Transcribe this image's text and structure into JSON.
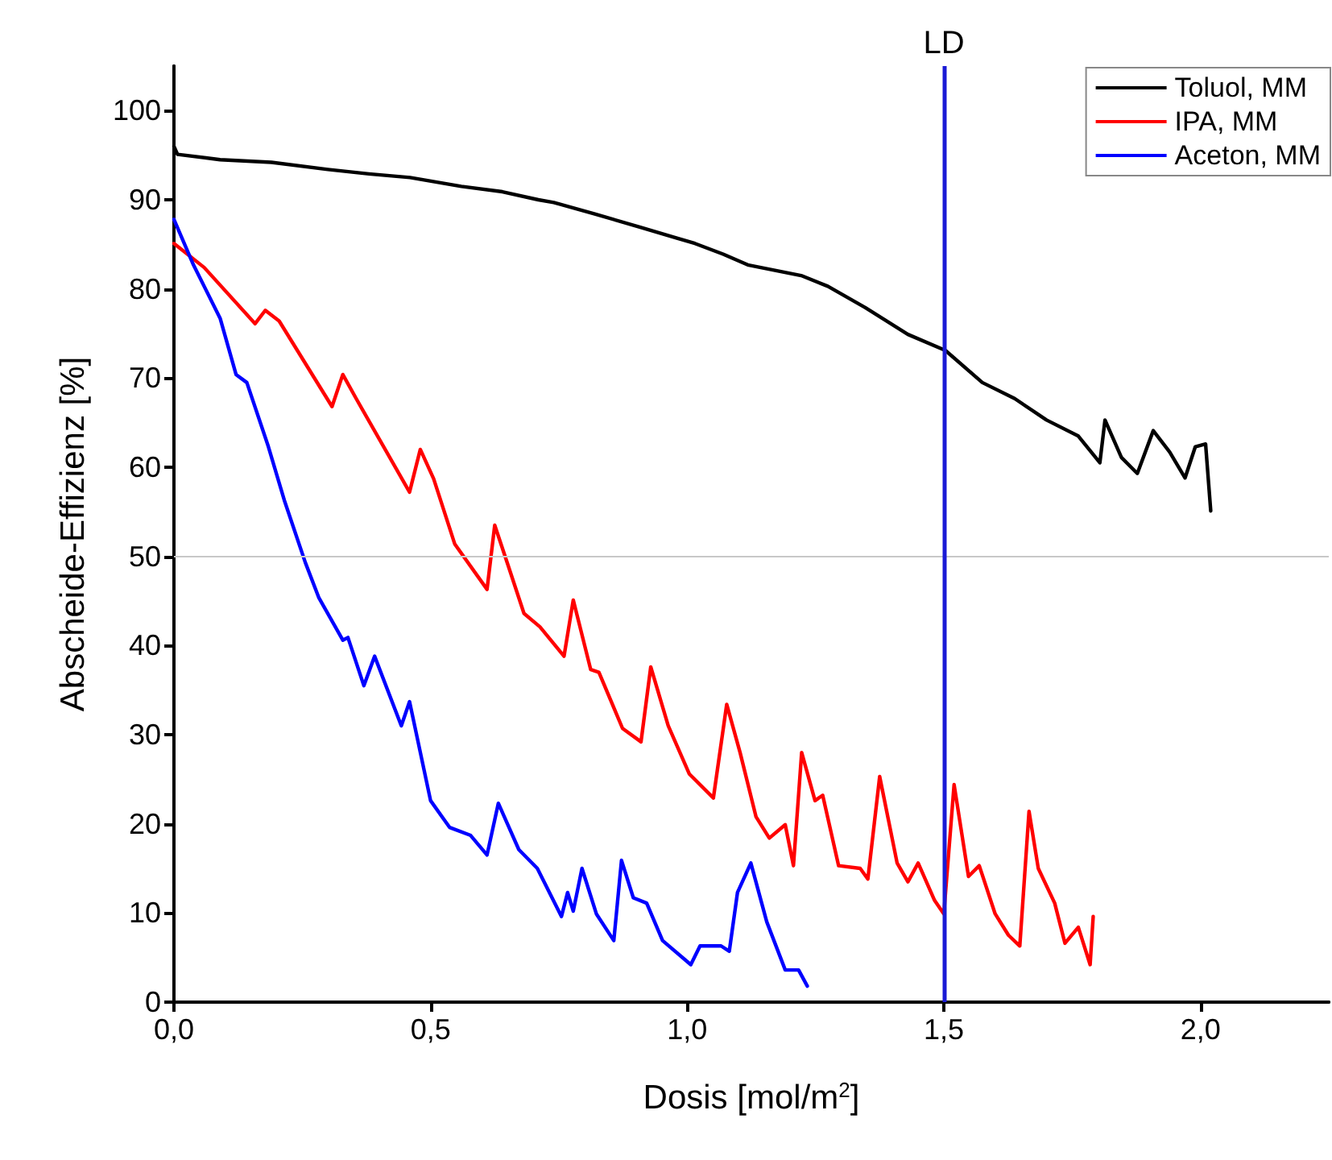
{
  "chart_data": {
    "type": "line",
    "xlabel": "Dosis [mol/m$^{2}$]",
    "ylabel": "Abscheide-Effizienz [%]",
    "xlim": [
      0,
      2.25
    ],
    "ylim": [
      0,
      105
    ],
    "xticks": [
      {
        "value": 0,
        "label": "0,0"
      },
      {
        "value": 0.5,
        "label": "0,5"
      },
      {
        "value": 1,
        "label": "1,0"
      },
      {
        "value": 1.5,
        "label": "1,5"
      },
      {
        "value": 2,
        "label": "2,0"
      }
    ],
    "yticks": [
      0,
      10,
      20,
      30,
      40,
      50,
      60,
      70,
      80,
      90,
      100
    ],
    "grid": false,
    "legend": "top right",
    "marker": "none",
    "line_style": "solid",
    "ref_lines": [
      {
        "axis": "y",
        "value": 50,
        "label": null,
        "color": "#c8c8c8"
      },
      {
        "axis": "x",
        "value": 1.5,
        "label": "LD",
        "color": "#1a1ad6"
      }
    ],
    "series": [
      {
        "name": "Toluol, MM",
        "color": "#000000",
        "x": [
          0,
          0.007,
          0.09,
          0.19,
          0.3,
          0.38,
          0.46,
          0.56,
          0.64,
          0.71,
          0.74,
          0.82,
          0.91,
          0.98,
          1.015,
          1.07,
          1.118,
          1.222,
          1.274,
          1.347,
          1.43,
          1.503,
          1.575,
          1.638,
          1.7,
          1.762,
          1.804,
          1.814,
          1.846,
          1.877,
          1.908,
          1.94,
          1.97,
          1.99,
          2.01,
          2.02
        ],
        "values": [
          96,
          95.1,
          94.5,
          94.2,
          93.4,
          92.9,
          92.5,
          91.5,
          90.9,
          90,
          89.7,
          88.4,
          86.9,
          85.7,
          85.1,
          83.9,
          82.7,
          81.5,
          80.3,
          77.9,
          74.9,
          73.1,
          69.5,
          67.7,
          65.3,
          63.5,
          60.5,
          65.3,
          61.1,
          59.3,
          64.1,
          61.7,
          58.8,
          62.3,
          62.6,
          55.1
        ]
      },
      {
        "name": "IPA, MM",
        "color": "#ff0000",
        "x": [
          0,
          0.059,
          0.158,
          0.178,
          0.205,
          0.308,
          0.329,
          0.355,
          0.459,
          0.48,
          0.506,
          0.547,
          0.61,
          0.625,
          0.651,
          0.682,
          0.713,
          0.76,
          0.778,
          0.812,
          0.828,
          0.874,
          0.91,
          0.929,
          0.963,
          1.004,
          1.051,
          1.077,
          1.103,
          1.134,
          1.16,
          1.191,
          1.207,
          1.223,
          1.249,
          1.264,
          1.295,
          1.337,
          1.352,
          1.375,
          1.409,
          1.43,
          1.45,
          1.482,
          1.5,
          1.52,
          1.548,
          1.569,
          1.6,
          1.626,
          1.648,
          1.666,
          1.684,
          1.716,
          1.736,
          1.762,
          1.785,
          1.791
        ],
        "values": [
          85.1,
          82.4,
          76.1,
          77.6,
          76.4,
          66.8,
          70.4,
          67.7,
          57.2,
          62,
          58.7,
          51.4,
          46.3,
          53.5,
          49,
          43.6,
          42.1,
          38.8,
          45.1,
          37.3,
          37,
          30.7,
          29.2,
          37.6,
          31,
          25.6,
          22.9,
          33.4,
          28,
          20.8,
          18.4,
          19.9,
          15.3,
          28,
          22.6,
          23.2,
          15.3,
          15,
          13.8,
          25.3,
          15.6,
          13.5,
          15.6,
          11.4,
          9.9,
          24.4,
          14.1,
          15.3,
          9.9,
          7.5,
          6.3,
          21.4,
          15,
          11.1,
          6.6,
          8.4,
          4.2,
          9.6
        ]
      },
      {
        "name": "Aceton, MM",
        "color": "#0000ff",
        "x": [
          0,
          0.038,
          0.09,
          0.121,
          0.142,
          0.184,
          0.215,
          0.256,
          0.282,
          0.329,
          0.339,
          0.37,
          0.391,
          0.443,
          0.459,
          0.5,
          0.537,
          0.578,
          0.61,
          0.632,
          0.672,
          0.708,
          0.755,
          0.767,
          0.778,
          0.795,
          0.823,
          0.857,
          0.872,
          0.895,
          0.921,
          0.952,
          1.007,
          1.025,
          1.066,
          1.082,
          1.098,
          1.124,
          1.155,
          1.191,
          1.217,
          1.234
        ],
        "values": [
          87.8,
          82.7,
          76.7,
          70.4,
          69.5,
          62.3,
          56.3,
          49.3,
          45.4,
          40.6,
          40.9,
          35.5,
          38.8,
          31,
          33.7,
          22.6,
          19.6,
          18.7,
          16.5,
          22.3,
          17.1,
          15,
          9.6,
          12.3,
          10.2,
          15,
          9.9,
          6.9,
          15.9,
          11.7,
          11.1,
          6.9,
          4.2,
          6.3,
          6.3,
          5.7,
          12.3,
          15.6,
          9,
          3.6,
          3.6,
          1.8
        ]
      }
    ]
  }
}
